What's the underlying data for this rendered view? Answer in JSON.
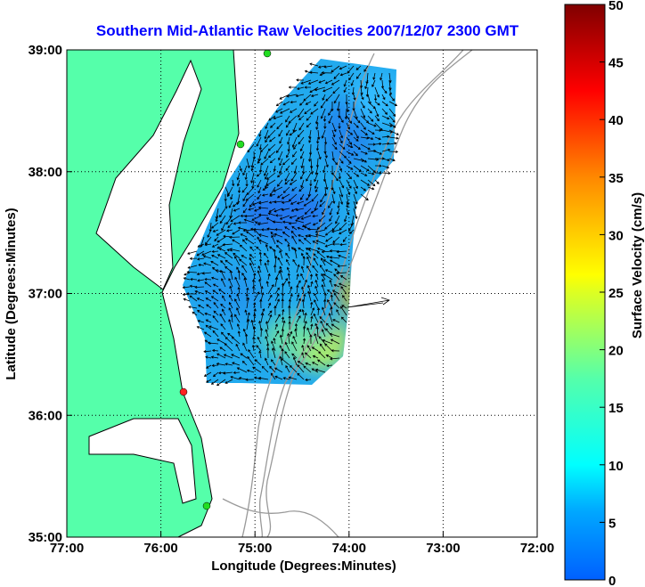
{
  "title": "Southern Mid-Atlantic Raw Velocities 2007/12/07 2300 GMT",
  "colors": {
    "title": "#0000ff",
    "land": "#55ffaa",
    "bathymetry": "#999999",
    "station_ok": "#22dd22",
    "station_down": "#ff2222"
  },
  "chart_data": {
    "type": "heatmap",
    "title": "Southern Mid-Atlantic Raw Velocities 2007/12/07 2300 GMT",
    "xlabel": "Longitude (Degrees:Minutes)",
    "ylabel": "Latitude (Degrees:Minutes)",
    "xlim": [
      -77,
      -72
    ],
    "ylim": [
      35,
      39
    ],
    "x_ticks": [
      "77:00",
      "76:00",
      "75:00",
      "74:00",
      "73:00",
      "72:00"
    ],
    "y_ticks": [
      "39:00",
      "38:00",
      "37:00",
      "36:00",
      "35:00"
    ],
    "grid": true,
    "colorbar": {
      "label": "Surface Velocity (cm/s)",
      "range": [
        0,
        50
      ],
      "ticks": [
        "0",
        "5",
        "10",
        "15",
        "20",
        "25",
        "30",
        "35",
        "40",
        "45",
        "50"
      ]
    },
    "stations": [
      {
        "lon": -75.0,
        "lat": 39.0,
        "status": "ok"
      },
      {
        "lon": -75.2,
        "lat": 38.2,
        "status": "ok"
      },
      {
        "lon": -75.6,
        "lat": 35.25,
        "status": "ok"
      },
      {
        "lon": -75.75,
        "lat": 36.2,
        "status": "down"
      }
    ]
  }
}
